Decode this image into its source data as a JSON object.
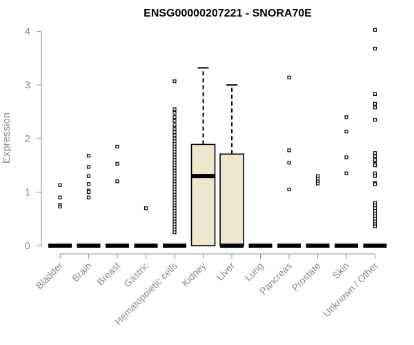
{
  "chart_data": {
    "type": "box",
    "title": "ENSG00000207221 - SNORA70E",
    "xlabel": "",
    "ylabel": "Expression",
    "ylim": [
      0,
      4
    ],
    "yticks": [
      0,
      1,
      2,
      3,
      4
    ],
    "grid": false,
    "legend": "none",
    "box_fill": "#ece6cf",
    "box_stroke": "#000000",
    "axis_color": "#8a8a8a",
    "categories": [
      "Bladder",
      "Brain",
      "Breast",
      "Gastric",
      "Hematopoietic cells",
      "Kidney",
      "Liver",
      "Lung",
      "Pancreas",
      "Prostate",
      "Skin",
      "Unknown / Other"
    ],
    "boxes": [
      {
        "q1": 0,
        "median": 0,
        "q3": 0,
        "whisker_low": 0,
        "whisker_high": 0,
        "outliers": [
          1.13,
          0.9,
          0.76,
          0.73
        ]
      },
      {
        "q1": 0,
        "median": 0,
        "q3": 0,
        "whisker_low": 0,
        "whisker_high": 0,
        "outliers": [
          1.68,
          1.47,
          1.3,
          1.15,
          1.03,
          1.0,
          0.9
        ]
      },
      {
        "q1": 0,
        "median": 0,
        "q3": 0,
        "whisker_low": 0,
        "whisker_high": 0,
        "outliers": [
          1.85,
          1.53,
          1.2
        ]
      },
      {
        "q1": 0,
        "median": 0,
        "q3": 0,
        "whisker_low": 0,
        "whisker_high": 0,
        "outliers": [
          0.7
        ]
      },
      {
        "q1": 0,
        "median": 0,
        "q3": 0,
        "whisker_low": 0,
        "whisker_high": 0,
        "outliers": [
          3.07,
          2.55,
          2.48,
          2.4,
          2.33,
          2.25,
          2.18,
          2.12,
          2.06,
          2.0,
          1.95,
          1.9,
          1.85,
          1.8,
          1.75,
          1.7,
          1.65,
          1.6,
          1.55,
          1.5,
          1.45,
          1.4,
          1.35,
          1.3,
          1.25,
          1.2,
          1.15,
          1.1,
          1.05,
          1.0,
          0.95,
          0.9,
          0.85,
          0.8,
          0.75,
          0.7,
          0.65,
          0.6,
          0.55,
          0.5,
          0.45,
          0.4,
          0.35,
          0.3,
          0.25
        ]
      },
      {
        "q1": 0,
        "median": 1.3,
        "q3": 1.89,
        "whisker_low": 0,
        "whisker_high": 3.32,
        "outliers": []
      },
      {
        "q1": 0,
        "median": 0,
        "q3": 1.71,
        "whisker_low": 0,
        "whisker_high": 3.0,
        "outliers": []
      },
      {
        "q1": 0,
        "median": 0,
        "q3": 0,
        "whisker_low": 0,
        "whisker_high": 0,
        "outliers": []
      },
      {
        "q1": 0,
        "median": 0,
        "q3": 0,
        "whisker_low": 0,
        "whisker_high": 0,
        "outliers": [
          3.14,
          1.78,
          1.55,
          1.05
        ]
      },
      {
        "q1": 0,
        "median": 0,
        "q3": 0,
        "whisker_low": 0,
        "whisker_high": 0,
        "outliers": [
          1.3,
          1.25,
          1.2,
          1.16
        ]
      },
      {
        "q1": 0,
        "median": 0,
        "q3": 0,
        "whisker_low": 0,
        "whisker_high": 0,
        "outliers": [
          2.4,
          2.13,
          1.65,
          1.35
        ]
      },
      {
        "q1": 0,
        "median": 0,
        "q3": 0,
        "whisker_low": 0,
        "whisker_high": 0,
        "outliers": [
          4.03,
          3.68,
          2.83,
          2.65,
          2.58,
          2.35,
          1.73,
          1.67,
          1.6,
          1.53,
          1.5,
          1.35,
          1.3,
          1.17,
          1.15,
          0.8,
          0.75,
          0.7,
          0.65,
          0.6,
          0.55,
          0.5,
          0.45,
          0.4,
          0.36
        ]
      }
    ]
  }
}
